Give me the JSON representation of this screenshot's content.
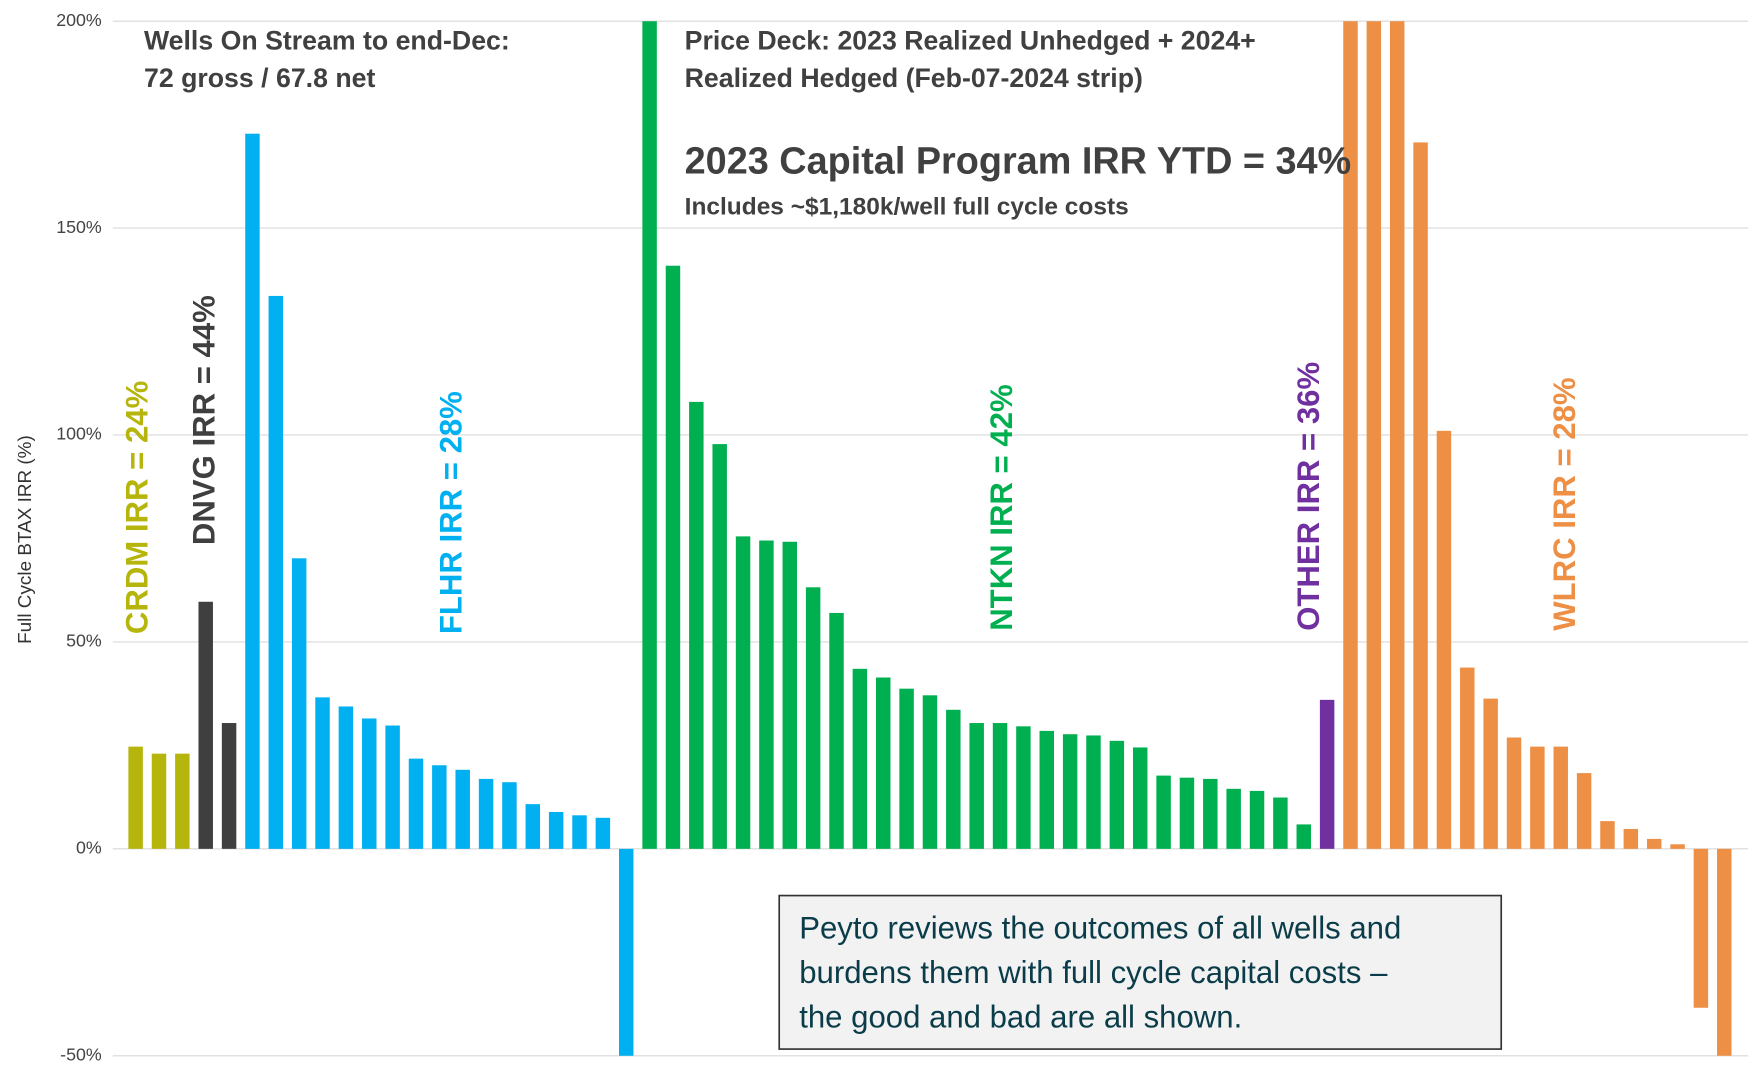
{
  "chart_data": {
    "type": "bar",
    "ylabel": "Full Cycle BTAX IRR (%)",
    "ylim": [
      -50,
      200
    ],
    "yticks": [
      {
        "value": -50,
        "label": "-50%"
      },
      {
        "value": 0,
        "label": "0%"
      },
      {
        "value": 50,
        "label": "50%"
      },
      {
        "value": 100,
        "label": "100%"
      },
      {
        "value": 150,
        "label": "150%"
      },
      {
        "value": 200,
        "label": "200%"
      }
    ],
    "grid": true,
    "annotations": {
      "wells": [
        "Wells On Stream to end-Dec:",
        "72 gross / 67.8 net"
      ],
      "price_deck": [
        "Price Deck: 2023 Realized Unhedged + 2024+",
        "Realized Hedged (Feb-07-2024 strip)"
      ],
      "headline": "2023 Capital Program IRR YTD = 34%",
      "costs": "Includes ~$1,180k/well full cycle costs",
      "box": [
        "Peyto reviews the outcomes of all wells and",
        "burdens them with full cycle capital costs –",
        "the good and bad are all shown."
      ]
    },
    "groups": [
      {
        "label": "CRDM IRR = 24%",
        "color": "#b5b50c",
        "values": [
          24.7,
          23,
          23
        ]
      },
      {
        "label": "DNVG IRR = 44%",
        "color": "#3f3f3f",
        "values": [
          59.7,
          30.4
        ]
      },
      {
        "label": "FLHR IRR = 28%",
        "color": "#00b0f0",
        "values": [
          172.8,
          133.6,
          70.2,
          36.6,
          34.4,
          31.5,
          29.8,
          21.8,
          20.2,
          19.1,
          16.9,
          16.1,
          10.8,
          8.9,
          8.1,
          7.5,
          -50
        ]
      },
      {
        "label": "NTKN IRR = 42%",
        "color": "#00b050",
        "values": [
          200,
          140.9,
          108,
          97.8,
          75.5,
          74.5,
          74.2,
          63.2,
          57,
          43.5,
          41.4,
          38.7,
          37.1,
          33.6,
          30.4,
          30.4,
          29.6,
          28.5,
          27.7,
          27.4,
          26.1,
          24.5,
          17.7,
          17.2,
          16.9,
          14.5,
          14,
          12.4,
          5.9
        ]
      },
      {
        "label": "OTHER IRR = 36%",
        "color": "#7030a0",
        "values": [
          36
        ]
      },
      {
        "label": "WLRC IRR = 28%",
        "color": "#ed8f45",
        "values": [
          200,
          200,
          200,
          170.7,
          101,
          43.8,
          36.3,
          26.9,
          24.7,
          24.7,
          18.3,
          6.7,
          4.8,
          2.4,
          1.1,
          -38.4,
          -50
        ]
      }
    ]
  }
}
